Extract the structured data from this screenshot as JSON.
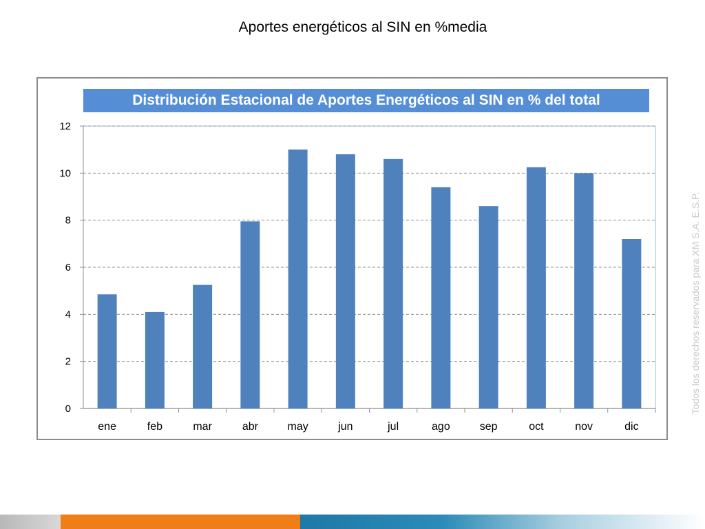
{
  "slide": {
    "title": "Aportes energéticos al SIN en %media",
    "watermark": "Todos los derechos reservados para XM S.A. E.S.P."
  },
  "chart_data": {
    "type": "bar",
    "title": "Distribución Estacional de Aportes Energéticos al SIN en % del total",
    "categories": [
      "ene",
      "feb",
      "mar",
      "abr",
      "may",
      "jun",
      "jul",
      "ago",
      "sep",
      "oct",
      "nov",
      "dic"
    ],
    "values": [
      4.85,
      4.1,
      5.25,
      7.95,
      11.0,
      10.8,
      10.6,
      9.4,
      8.6,
      10.25,
      10.0,
      7.2
    ],
    "ylim": [
      0,
      12
    ],
    "yticks": [
      0,
      2,
      4,
      6,
      8,
      10,
      12
    ],
    "xlabel": "",
    "ylabel": "",
    "grid": true,
    "legend": "none",
    "bar_color": "#4f81bd"
  },
  "colors": {
    "banner": "#558ed5",
    "footer_orange": "#f07e16",
    "footer_blue": "#1f78a6",
    "footer_gray": "#b8b8b8"
  }
}
